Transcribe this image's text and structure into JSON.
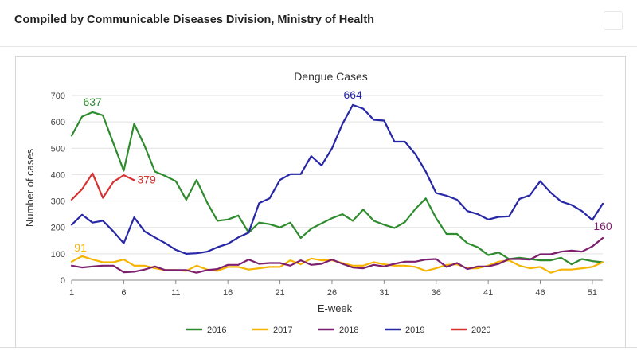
{
  "header": {
    "title": "Compiled by Communicable Diseases Division, Ministry of Health"
  },
  "colors": {
    "2016": "#2e8b2e",
    "2017": "#f5b400",
    "2018": "#7d1e6e",
    "2019": "#2626a6",
    "2020": "#d93030",
    "grid": "#e2e2e2",
    "axis": "#888888"
  },
  "chart_data": {
    "type": "line",
    "title": "Dengue Cases",
    "xlabel": "E-week",
    "ylabel": "Number of cases",
    "xlim": [
      1,
      52
    ],
    "ylim": [
      0,
      700
    ],
    "x_ticks": [
      1,
      6,
      11,
      16,
      21,
      26,
      31,
      36,
      41,
      46,
      51
    ],
    "y_ticks": [
      0,
      100,
      200,
      300,
      400,
      500,
      600,
      700
    ],
    "grid": true,
    "legend_position": "bottom",
    "series": [
      {
        "name": "2016",
        "color": "#2e8b2e",
        "x": [
          1,
          2,
          3,
          4,
          5,
          6,
          7,
          8,
          9,
          10,
          11,
          12,
          13,
          14,
          15,
          16,
          17,
          18,
          19,
          20,
          21,
          22,
          23,
          24,
          25,
          26,
          27,
          28,
          29,
          30,
          31,
          32,
          33,
          34,
          35,
          36,
          37,
          38,
          39,
          40,
          41,
          42,
          43,
          44,
          45,
          46,
          47,
          48,
          49,
          50,
          51,
          52
        ],
        "y": [
          548,
          620,
          637,
          625,
          520,
          415,
          593,
          510,
          412,
          395,
          375,
          305,
          380,
          295,
          225,
          230,
          245,
          180,
          218,
          212,
          200,
          218,
          160,
          195,
          215,
          235,
          250,
          225,
          268,
          225,
          210,
          198,
          220,
          270,
          310,
          235,
          175,
          175,
          140,
          125,
          95,
          105,
          80,
          85,
          80,
          75,
          75,
          85,
          60,
          80,
          72,
          68
        ]
      },
      {
        "name": "2017",
        "color": "#f5b400",
        "x": [
          1,
          2,
          3,
          4,
          5,
          6,
          7,
          8,
          9,
          10,
          11,
          12,
          13,
          14,
          15,
          16,
          17,
          18,
          19,
          20,
          21,
          22,
          23,
          24,
          25,
          26,
          27,
          28,
          29,
          30,
          31,
          32,
          33,
          34,
          35,
          36,
          37,
          38,
          39,
          40,
          41,
          42,
          43,
          44,
          45,
          46,
          47,
          48,
          49,
          50,
          51,
          52
        ],
        "y": [
          70,
          91,
          78,
          68,
          68,
          78,
          55,
          55,
          45,
          38,
          38,
          35,
          55,
          40,
          35,
          50,
          50,
          40,
          45,
          50,
          50,
          75,
          60,
          82,
          75,
          75,
          65,
          55,
          55,
          68,
          60,
          55,
          55,
          50,
          35,
          45,
          58,
          60,
          45,
          45,
          55,
          70,
          75,
          55,
          45,
          50,
          28,
          40,
          40,
          45,
          50,
          68
        ]
      },
      {
        "name": "2018",
        "color": "#7d1e6e",
        "x": [
          1,
          2,
          3,
          4,
          5,
          6,
          7,
          8,
          9,
          10,
          11,
          12,
          13,
          14,
          15,
          16,
          17,
          18,
          19,
          20,
          21,
          22,
          23,
          24,
          25,
          26,
          27,
          28,
          29,
          30,
          31,
          32,
          33,
          34,
          35,
          36,
          37,
          38,
          39,
          40,
          41,
          42,
          43,
          44,
          45,
          46,
          47,
          48,
          49,
          50,
          51,
          52
        ],
        "y": [
          55,
          48,
          52,
          55,
          55,
          30,
          32,
          40,
          52,
          38,
          38,
          38,
          28,
          38,
          42,
          58,
          58,
          78,
          62,
          65,
          65,
          55,
          75,
          58,
          62,
          78,
          62,
          48,
          45,
          58,
          52,
          62,
          70,
          70,
          78,
          80,
          50,
          65,
          42,
          52,
          52,
          62,
          80,
          80,
          78,
          98,
          98,
          108,
          112,
          108,
          128,
          160
        ]
      },
      {
        "name": "2019",
        "color": "#2626a6",
        "x": [
          1,
          2,
          3,
          4,
          5,
          6,
          7,
          8,
          9,
          10,
          11,
          12,
          13,
          14,
          15,
          16,
          17,
          18,
          19,
          20,
          21,
          22,
          23,
          24,
          25,
          26,
          27,
          28,
          29,
          30,
          31,
          32,
          33,
          34,
          35,
          36,
          37,
          38,
          39,
          40,
          41,
          42,
          43,
          44,
          45,
          46,
          47,
          48,
          49,
          50,
          51,
          52
        ],
        "y": [
          210,
          248,
          218,
          225,
          185,
          140,
          238,
          185,
          162,
          140,
          115,
          100,
          102,
          108,
          125,
          138,
          162,
          180,
          292,
          310,
          380,
          402,
          402,
          470,
          435,
          500,
          592,
          664,
          650,
          608,
          605,
          525,
          525,
          478,
          412,
          330,
          320,
          305,
          262,
          250,
          230,
          240,
          242,
          308,
          322,
          375,
          332,
          298,
          285,
          262,
          228,
          290
        ]
      },
      {
        "name": "2020",
        "color": "#d93030",
        "x": [
          1,
          2,
          3,
          4,
          5,
          6,
          7
        ],
        "y": [
          305,
          345,
          405,
          312,
          372,
          398,
          379
        ]
      }
    ],
    "annotations": [
      {
        "text": "637",
        "series": "2016",
        "x": 3,
        "y": 637
      },
      {
        "text": "664",
        "series": "2019",
        "x": 28,
        "y": 664
      },
      {
        "text": "379",
        "series": "2020",
        "x": 7,
        "y": 379
      },
      {
        "text": "91",
        "series": "2017",
        "x": 2,
        "y": 91
      },
      {
        "text": "160",
        "series": "2018",
        "x": 52,
        "y": 160
      }
    ]
  }
}
